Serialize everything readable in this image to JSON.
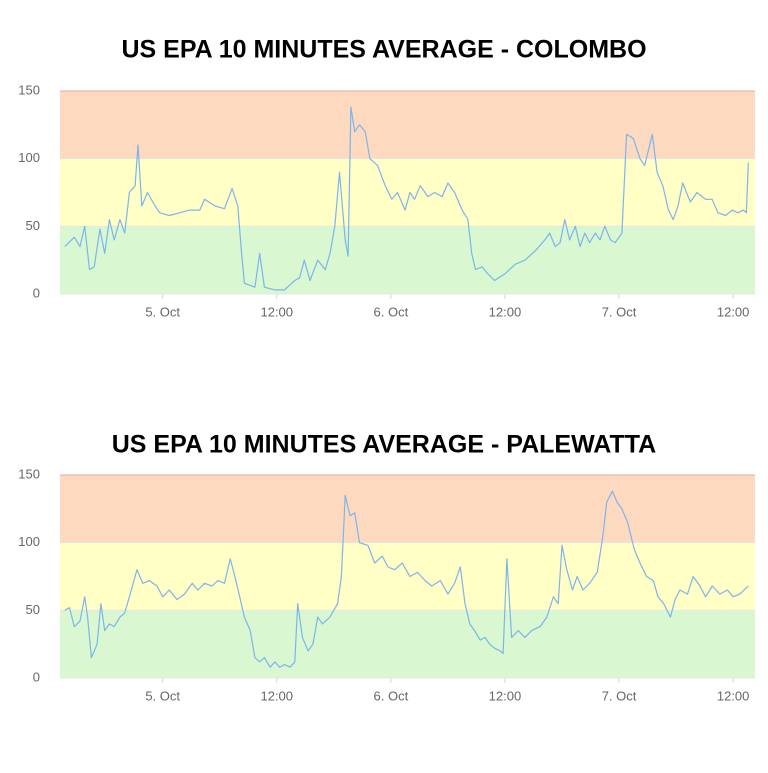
{
  "chart_data": [
    {
      "type": "line",
      "title": "US EPA 10 MINUTES AVERAGE - COLOMBO",
      "xlim": [
        -10.8,
        62.3
      ],
      "ylim": [
        0,
        150
      ],
      "yticks": [
        0,
        50,
        100,
        150
      ],
      "xticks": [
        {
          "value": 0,
          "label": "5. Oct"
        },
        {
          "value": 12,
          "label": "12:00"
        },
        {
          "value": 24,
          "label": "6. Oct"
        },
        {
          "value": 36,
          "label": "12:00"
        },
        {
          "value": 48,
          "label": "7. Oct"
        },
        {
          "value": 60,
          "label": "12:00"
        }
      ],
      "bands": [
        {
          "from": 0,
          "to": 50,
          "color": "#d9f7d1"
        },
        {
          "from": 50,
          "to": 100,
          "color": "#ffffc6"
        },
        {
          "from": 100,
          "to": 150,
          "color": "#fdd9c0"
        }
      ],
      "color": "#7cb5ec",
      "x": [
        -10.3,
        -9.3,
        -8.7,
        -8.2,
        -7.7,
        -7.2,
        -6.6,
        -6.1,
        -5.6,
        -5.1,
        -4.5,
        -4.0,
        -3.5,
        -2.9,
        -2.6,
        -2.2,
        -1.6,
        -0.8,
        -0.3,
        0.7,
        1.8,
        2.8,
        3.9,
        4.4,
        5.5,
        6.5,
        7.3,
        7.9,
        8.3,
        8.6,
        9.7,
        10.2,
        10.7,
        11.8,
        12.8,
        13.9,
        14.4,
        14.9,
        15.5,
        16.3,
        17.1,
        17.6,
        18.1,
        18.6,
        19.2,
        19.5,
        19.8,
        20.2,
        20.7,
        21.3,
        21.8,
        22.6,
        23.4,
        24.1,
        24.7,
        25.5,
        26.0,
        26.5,
        27.1,
        27.9,
        28.6,
        29.4,
        30.0,
        30.7,
        31.5,
        32.1,
        32.5,
        32.9,
        33.6,
        34.2,
        34.9,
        36.0,
        37.1,
        38.1,
        39.2,
        40.2,
        40.7,
        41.3,
        41.8,
        42.3,
        42.8,
        43.4,
        43.9,
        44.4,
        44.9,
        45.5,
        46.0,
        46.5,
        47.1,
        47.6,
        48.3,
        48.8,
        49.5,
        50.2,
        50.7,
        51.5,
        52.0,
        52.6,
        53.2,
        53.7,
        54.2,
        54.7,
        55.5,
        56.2,
        57.1,
        57.8,
        58.4,
        59.2,
        59.9,
        60.5,
        61.1,
        61.4,
        61.6
      ],
      "values": [
        35,
        42,
        35,
        50,
        18,
        20,
        48,
        30,
        55,
        40,
        55,
        45,
        75,
        80,
        110,
        65,
        75,
        65,
        60,
        58,
        60,
        62,
        62,
        70,
        65,
        63,
        78,
        65,
        30,
        8,
        5,
        30,
        5,
        3,
        3,
        10,
        12,
        25,
        10,
        25,
        18,
        30,
        50,
        90,
        40,
        28,
        138,
        120,
        125,
        120,
        100,
        95,
        80,
        70,
        75,
        62,
        75,
        70,
        80,
        72,
        75,
        72,
        82,
        75,
        62,
        55,
        30,
        18,
        20,
        15,
        10,
        15,
        22,
        25,
        32,
        40,
        45,
        35,
        38,
        55,
        40,
        50,
        35,
        45,
        38,
        45,
        40,
        50,
        40,
        38,
        45,
        118,
        115,
        100,
        95,
        118,
        90,
        80,
        62,
        55,
        65,
        82,
        68,
        75,
        70,
        70,
        60,
        58,
        62,
        60,
        62,
        60,
        97
      ]
    },
    {
      "type": "line",
      "title": "US EPA 10 MINUTES AVERAGE - PALEWATTA",
      "xlim": [
        -10.8,
        62.3
      ],
      "ylim": [
        0,
        150
      ],
      "yticks": [
        0,
        50,
        100,
        150
      ],
      "xticks": [
        {
          "value": 0,
          "label": "5. Oct"
        },
        {
          "value": 12,
          "label": "12:00"
        },
        {
          "value": 24,
          "label": "6. Oct"
        },
        {
          "value": 36,
          "label": "12:00"
        },
        {
          "value": 48,
          "label": "7. Oct"
        },
        {
          "value": 60,
          "label": "12:00"
        }
      ],
      "bands": [
        {
          "from": 0,
          "to": 50,
          "color": "#d9f7d1"
        },
        {
          "from": 50,
          "to": 100,
          "color": "#ffffc6"
        },
        {
          "from": 100,
          "to": 150,
          "color": "#fdd9c0"
        }
      ],
      "color": "#7cb5ec",
      "x": [
        -10.3,
        -9.8,
        -9.3,
        -8.7,
        -8.2,
        -7.9,
        -7.5,
        -6.9,
        -6.5,
        -6.1,
        -5.6,
        -5.1,
        -4.5,
        -4.0,
        -3.5,
        -2.7,
        -2.1,
        -1.4,
        -0.6,
        0,
        0.7,
        1.5,
        2.3,
        3.1,
        3.7,
        4.4,
        5.2,
        5.8,
        6.5,
        7.1,
        7.6,
        8.1,
        8.6,
        9.2,
        9.7,
        10.2,
        10.7,
        11.3,
        11.8,
        12.3,
        12.8,
        13.4,
        13.9,
        14.2,
        14.7,
        15.3,
        15.8,
        16.3,
        16.8,
        17.6,
        18.4,
        18.8,
        19.2,
        19.7,
        20.2,
        20.7,
        21.6,
        22.3,
        23.1,
        23.7,
        24.4,
        25.2,
        26.0,
        26.8,
        27.6,
        28.3,
        29.2,
        30.0,
        30.7,
        31.3,
        31.8,
        32.3,
        32.8,
        33.4,
        33.9,
        34.4,
        34.9,
        35.5,
        35.8,
        36.2,
        36.7,
        37.4,
        38.1,
        38.8,
        39.7,
        40.4,
        41.1,
        41.6,
        42.0,
        42.5,
        43.1,
        43.6,
        44.2,
        44.9,
        45.7,
        46.3,
        46.7,
        47.3,
        47.8,
        48.3,
        48.9,
        49.6,
        50.2,
        50.9,
        51.6,
        52.1,
        52.7,
        53.4,
        53.9,
        54.4,
        55.2,
        55.8,
        56.5,
        57.1,
        57.8,
        58.6,
        59.4,
        60.0,
        60.7,
        61.6
      ],
      "values": [
        50,
        52,
        38,
        42,
        60,
        45,
        15,
        25,
        55,
        35,
        40,
        38,
        45,
        48,
        60,
        80,
        70,
        72,
        68,
        60,
        65,
        58,
        62,
        70,
        65,
        70,
        68,
        72,
        70,
        88,
        75,
        60,
        45,
        35,
        15,
        12,
        15,
        8,
        12,
        8,
        10,
        8,
        12,
        55,
        30,
        20,
        25,
        45,
        40,
        45,
        55,
        75,
        135,
        120,
        122,
        100,
        98,
        85,
        90,
        82,
        80,
        85,
        75,
        78,
        72,
        68,
        72,
        62,
        70,
        82,
        55,
        40,
        35,
        28,
        30,
        25,
        22,
        20,
        18,
        88,
        30,
        35,
        30,
        35,
        38,
        45,
        60,
        55,
        98,
        80,
        65,
        75,
        65,
        70,
        78,
        105,
        130,
        138,
        130,
        125,
        115,
        95,
        85,
        75,
        72,
        60,
        55,
        45,
        58,
        65,
        62,
        75,
        68,
        60,
        68,
        62,
        65,
        60,
        62,
        68
      ]
    }
  ]
}
